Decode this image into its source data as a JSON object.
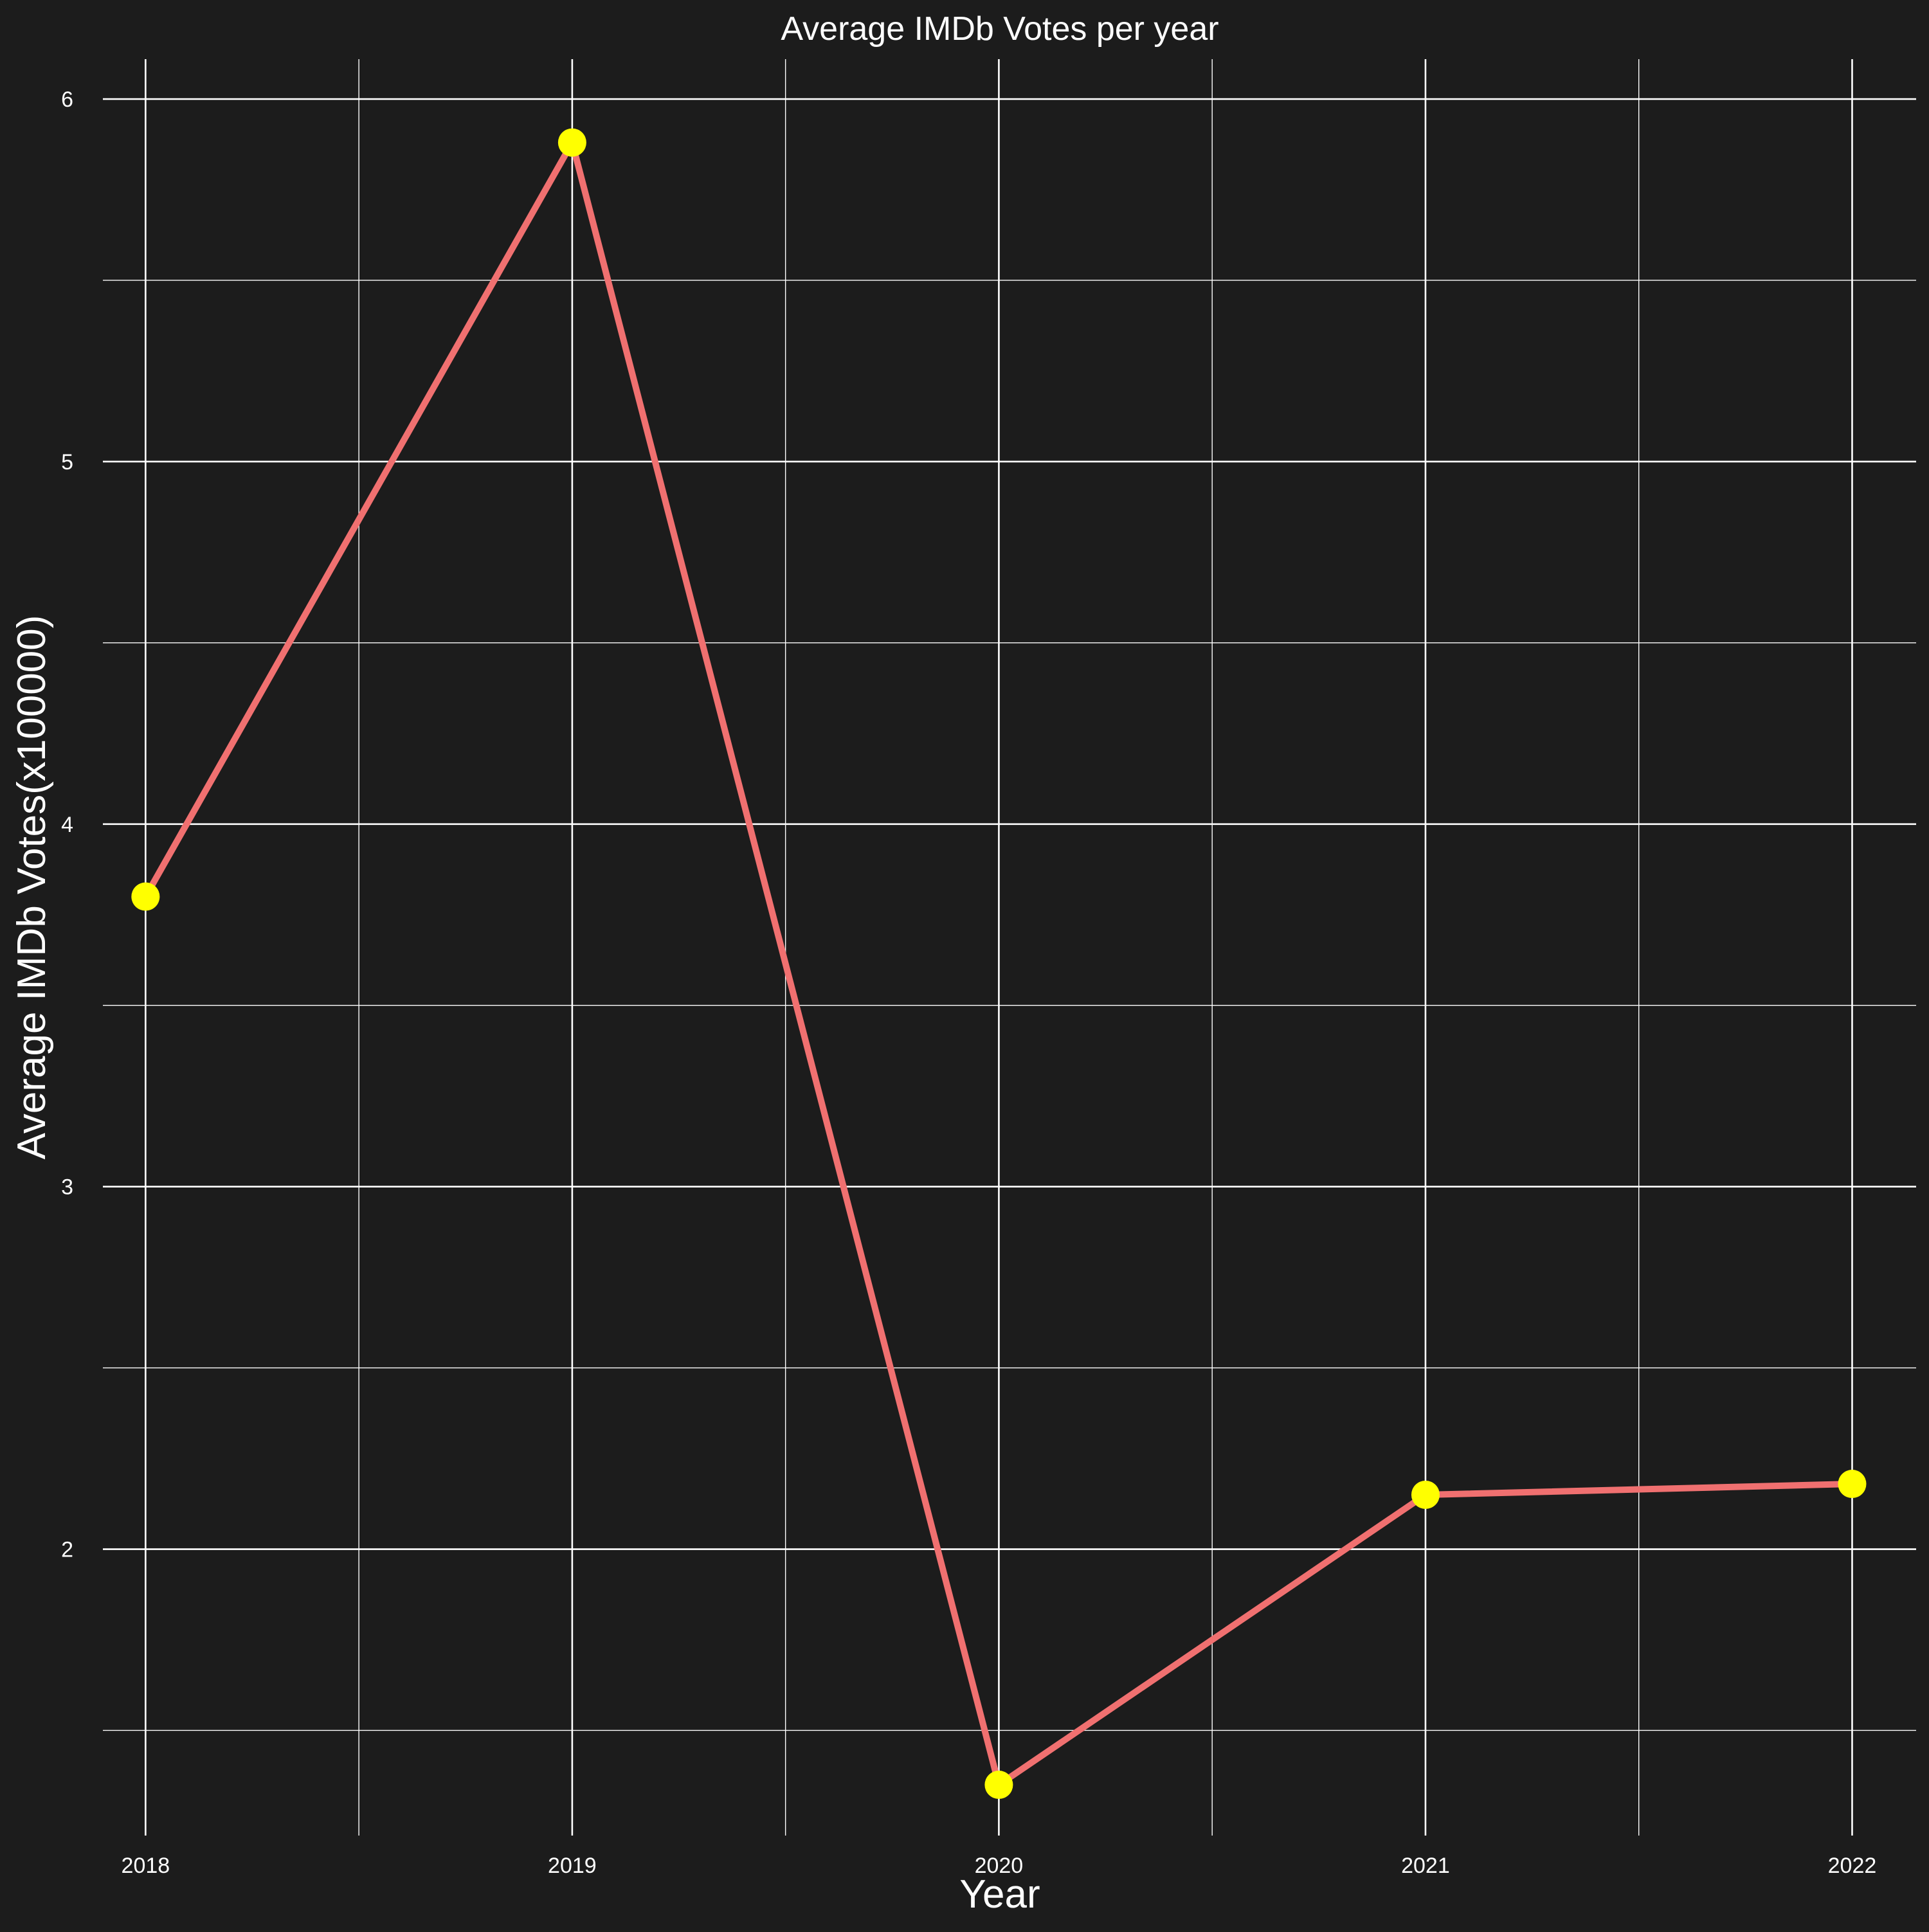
{
  "chart_data": {
    "type": "line",
    "title": "Average IMDb Votes per year",
    "xlabel": "Year",
    "ylabel": "Average IMDb Votes(x100000)",
    "x": [
      2018,
      2019,
      2020,
      2021,
      2022
    ],
    "x_tick_labels": [
      "2018",
      "2019",
      "2020",
      "2021",
      "2022"
    ],
    "y_tick_labels": [
      "2",
      "3",
      "4",
      "5",
      "6"
    ],
    "y_ticks": [
      2,
      3,
      4,
      5,
      6
    ],
    "series": [
      {
        "values": [
          3.8,
          5.88,
          1.35,
          2.15,
          2.18
        ]
      }
    ],
    "xlim": [
      2017.9,
      2022.15
    ],
    "ylim": [
      1.21,
      6.11
    ],
    "grid": true,
    "legend": "none",
    "colors": {
      "background": "#1c1c1c",
      "grid": "#ffffff",
      "line": "#f07070",
      "point": "#ffff00",
      "text": "#ffffff"
    }
  }
}
